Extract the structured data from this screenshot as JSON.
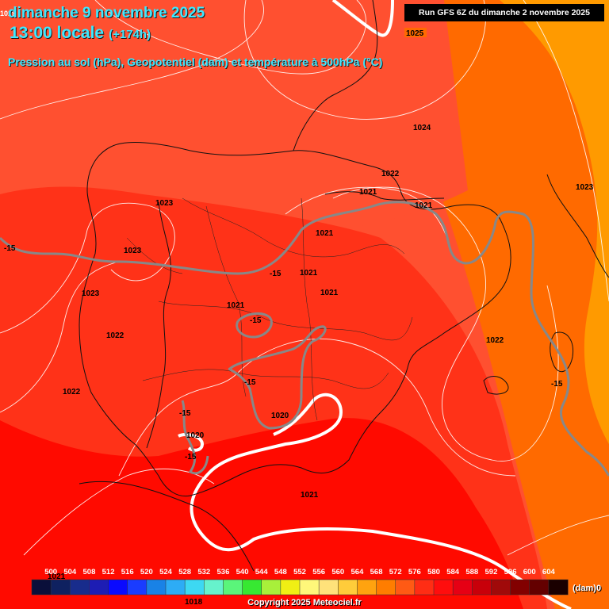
{
  "header": {
    "date": "dimanche 9 novembre 2025",
    "time": "13:00 locale",
    "offset": "(+174h)",
    "subtitle": "Pression au sol (hPa), Geopotentiel (dam) et température à 500hPa (°C)",
    "run": "Run GFS 6Z du dimanche 2 novembre 2025",
    "corner_label": "1019"
  },
  "pressure_labels": [
    "1025",
    "1024",
    "1023",
    "1022",
    "1021",
    "1023",
    "1023",
    "1021",
    "1023",
    "1021",
    "1021",
    "1022",
    "1021",
    "1022",
    "1021",
    "1022",
    "1020",
    "1020",
    "1021",
    "1018",
    "1021"
  ],
  "temp_labels": [
    "-15",
    "-15",
    "-15",
    "-15",
    "-15",
    "-15",
    "-15"
  ],
  "legend": {
    "ticks": [
      "500",
      "504",
      "508",
      "512",
      "516",
      "520",
      "524",
      "528",
      "532",
      "536",
      "540",
      "544",
      "548",
      "552",
      "556",
      "560",
      "564",
      "568",
      "572",
      "576",
      "580",
      "584",
      "588",
      "592",
      "596",
      "600",
      "604"
    ],
    "colors": [
      "#0a0f3a",
      "#0f2160",
      "#182c8c",
      "#1d1db4",
      "#0a0aff",
      "#1a3cff",
      "#1982e6",
      "#2dacf5",
      "#3dd8f2",
      "#66f2cc",
      "#5af57a",
      "#37e832",
      "#a8f03a",
      "#f0ef14",
      "#fff77a",
      "#ffe27a",
      "#ffcc3a",
      "#ffa30f",
      "#ff7d00",
      "#ff5a14",
      "#ff2d14",
      "#ff0d0d",
      "#e60014",
      "#c8000a",
      "#a00a0a",
      "#820000",
      "#640000",
      "#1a0000"
    ],
    "unit": "(dam)",
    "unit_suffix": "0"
  },
  "map_colors": {
    "band_576": "#ff5030",
    "band_580": "#ff3218",
    "band_584": "#ff0a00",
    "band_572": "#ff6a00",
    "band_568": "#ff9a00"
  },
  "copyright": "Copyright 2025 Meteociel.fr"
}
